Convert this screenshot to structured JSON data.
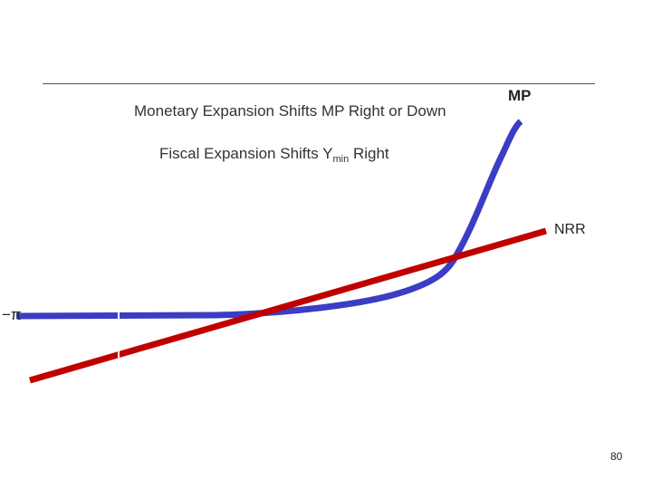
{
  "labels": {
    "monetary": "Monetary Expansion Shifts MP Right or Down",
    "fiscal_main": "Fiscal Expansion Shifts Y",
    "fiscal_sub": "min",
    "fiscal_tail": " Right",
    "mp": "MP",
    "nrr": "NRR",
    "neg_pi": "−π",
    "page_number": "80"
  },
  "colors": {
    "mp_curve": "#3b3dc4",
    "nrr_line": "#c00000",
    "background": "#ffffff"
  }
}
